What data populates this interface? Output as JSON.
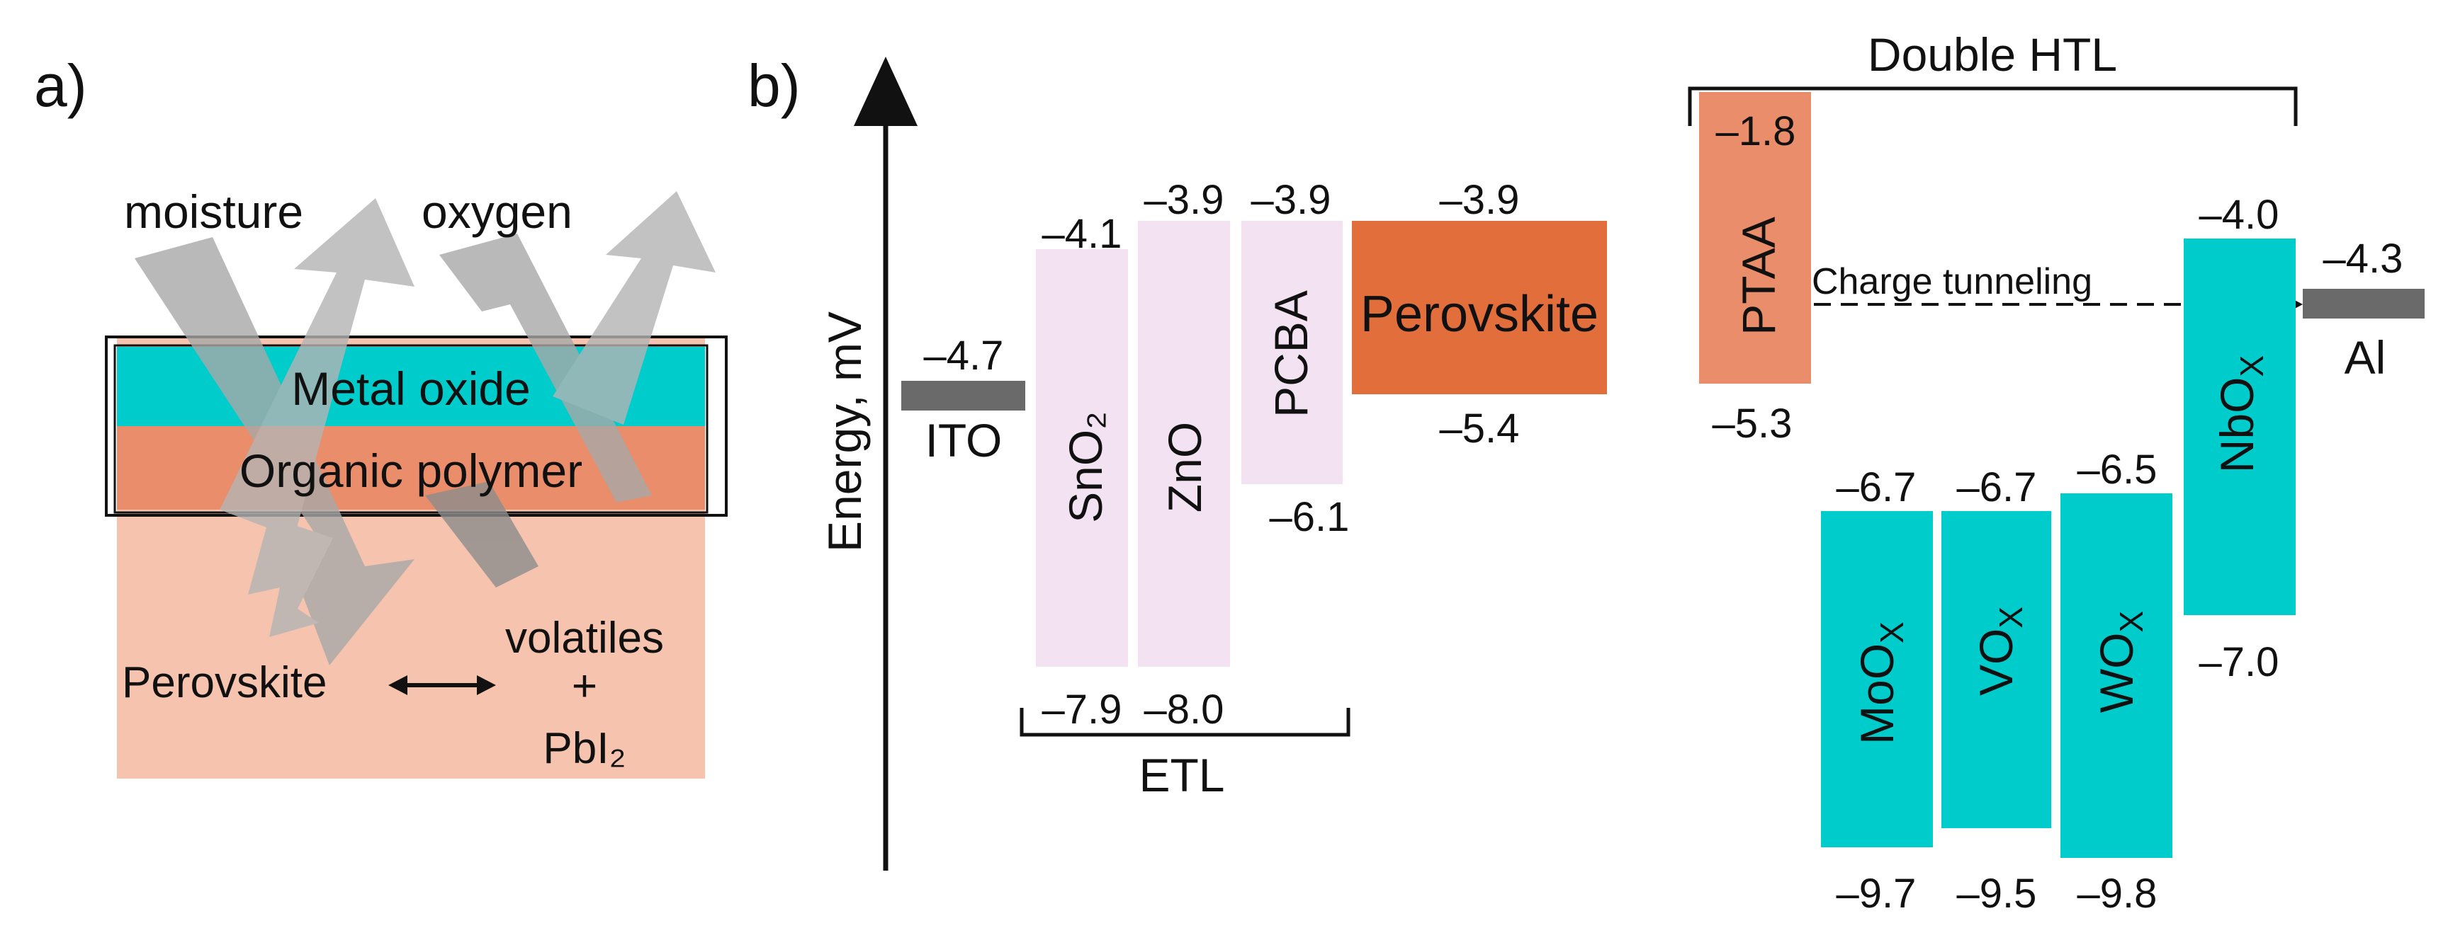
{
  "panel_a": {
    "label": "a)",
    "arrow_label_left": "moisture",
    "arrow_label_right": "oxygen",
    "layer_top": "Metal oxide",
    "layer_bottom": "Organic polymer",
    "perovskite": "Perovskite",
    "volatiles_line1": "volatiles",
    "volatiles_line2": "+",
    "volatiles_line3": "PbI₂"
  },
  "panel_b": {
    "label": "b)",
    "axis_label": "Energy, mV",
    "double_htl": "Double HTL",
    "etl": "ETL",
    "charge_tunneling": "Charge tunneling"
  },
  "levels": {
    "ito": {
      "name": "ITO",
      "value": "–4.7"
    },
    "sno2": {
      "name": "SnO₂",
      "top": "–4.1",
      "bottom": "–7.9"
    },
    "zno": {
      "name": "ZnO",
      "top": "–3.9",
      "bottom": "–8.0"
    },
    "pcba": {
      "name": "PCBA",
      "top": "–3.9",
      "bottom": "–6.1"
    },
    "perovskite": {
      "name": "Perovskite",
      "top": "–3.9",
      "bottom": "–5.4"
    },
    "ptaa": {
      "name": "PTAA",
      "top": "–1.8",
      "bottom": "–5.3"
    },
    "moox": {
      "name": "MoO",
      "sub": "X",
      "top": "–6.7",
      "bottom": "–9.7"
    },
    "vox": {
      "name": "VO",
      "sub": "X",
      "top": "–6.7",
      "bottom": "–9.5"
    },
    "wox": {
      "name": "WO",
      "sub": "X",
      "top": "–6.5",
      "bottom": "–9.8"
    },
    "nbox": {
      "name": "NbO",
      "sub": "X",
      "top": "–4.0",
      "bottom": "–7.0"
    },
    "al": {
      "name": "Al",
      "value": "–4.3"
    }
  },
  "colors": {
    "cyan": "#00cccc",
    "salmon": "#e98d6a",
    "orange": "#e26e3c",
    "pink_bg": "#f6c4ae",
    "lavender": "#f2e2f2",
    "gray_bar": "#6a6a6a",
    "arrow_gray": "#b8b8b8"
  }
}
